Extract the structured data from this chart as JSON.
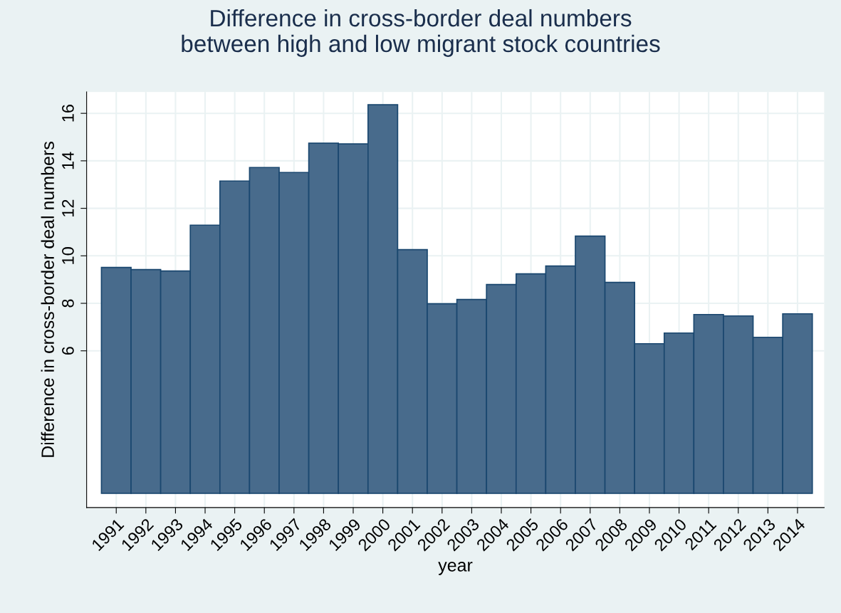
{
  "chart_data": {
    "type": "bar",
    "title": "Difference in cross-border deal numbers\nbetween high and low migrant stock countries",
    "xlabel": "year",
    "ylabel": "Difference in cross-border deal numbers",
    "categories": [
      "1991",
      "1992",
      "1993",
      "1994",
      "1995",
      "1996",
      "1997",
      "1998",
      "1999",
      "2000",
      "2001",
      "2002",
      "2003",
      "2004",
      "2005",
      "2006",
      "2007",
      "2008",
      "2009",
      "2010",
      "2011",
      "2012",
      "2013",
      "2014"
    ],
    "series": [
      {
        "color": "#486b8c",
        "values": [
          9.51,
          9.42,
          9.36,
          11.29,
          13.15,
          13.72,
          13.51,
          14.74,
          14.71,
          16.36,
          10.26,
          7.98,
          8.16,
          8.79,
          9.24,
          9.57,
          10.83,
          8.88,
          6.3,
          6.75,
          7.53,
          7.47,
          6.57,
          7.56
        ]
      }
    ],
    "ylim": [
      -0.6,
      16.9
    ],
    "yticks": [
      6,
      8,
      10,
      12,
      14,
      16
    ],
    "grid": true
  }
}
